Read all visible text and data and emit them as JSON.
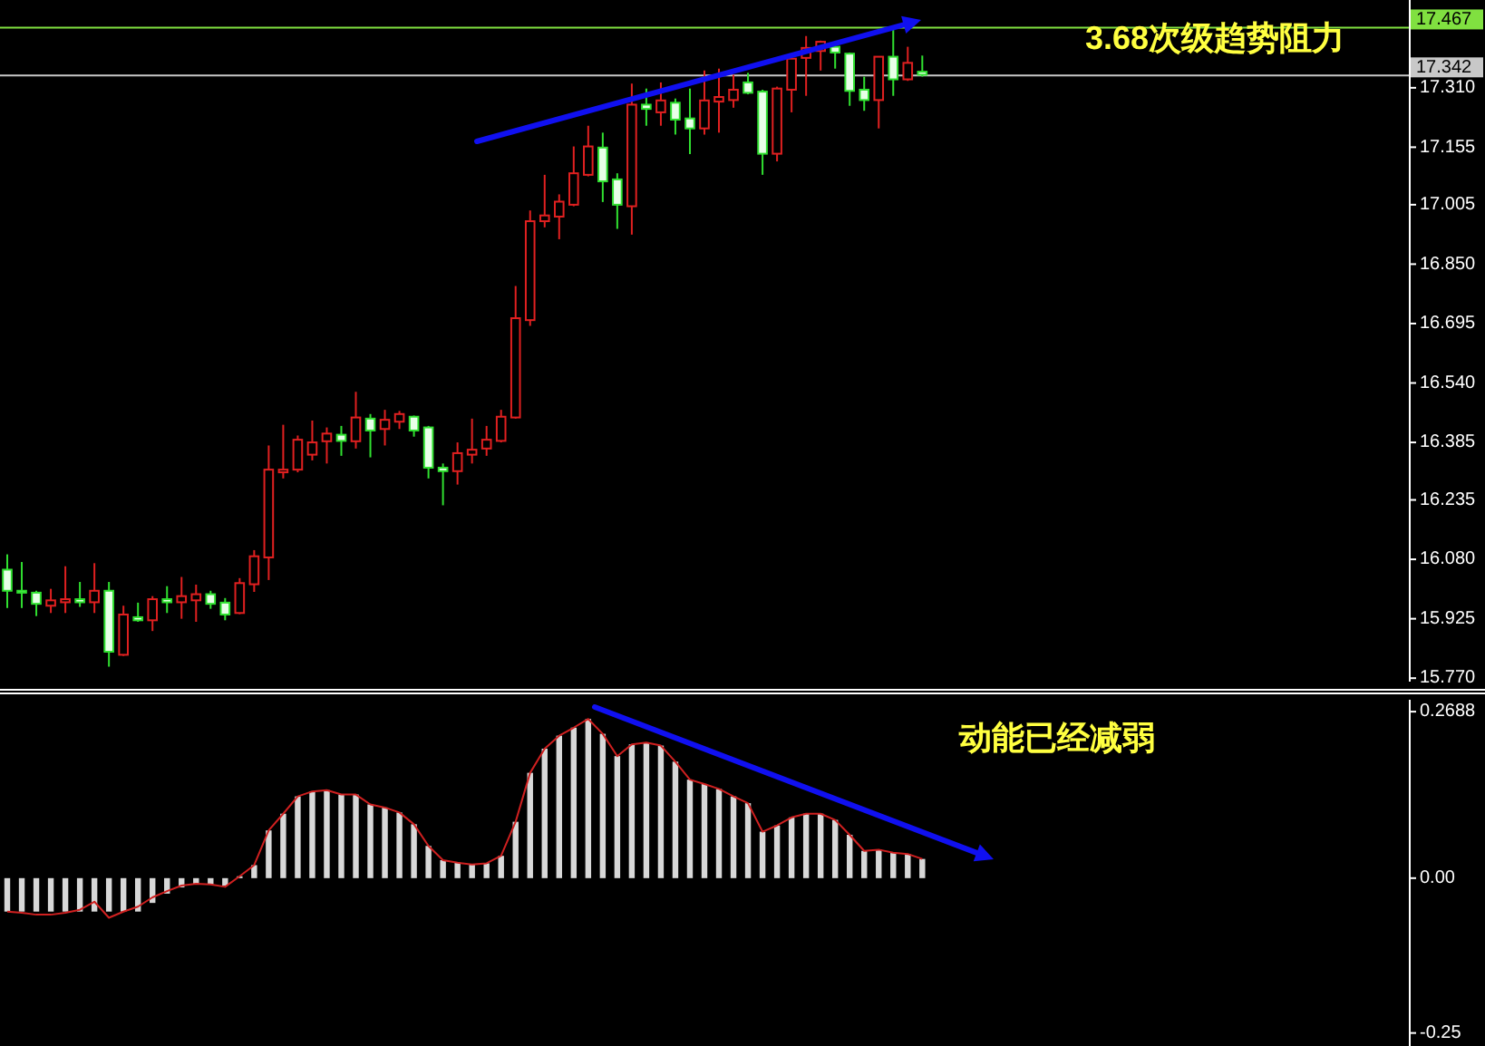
{
  "chart_data": [
    {
      "type": "candlestick",
      "tick_labels": "y",
      "ylim": [
        15.761,
        17.539
      ],
      "categories": [
        null,
        null,
        null,
        null,
        null,
        null,
        null,
        null,
        null,
        null,
        null,
        null,
        null,
        null,
        null,
        null,
        null,
        null,
        null,
        null,
        null,
        null,
        null,
        null,
        null,
        null,
        null,
        null,
        null,
        null,
        null,
        null,
        null,
        null,
        null,
        null,
        null,
        null,
        null,
        null,
        null,
        null,
        null,
        null,
        null,
        null,
        null,
        null,
        null,
        null,
        null,
        null,
        null,
        null,
        null,
        null,
        null,
        null,
        null,
        null,
        null,
        null,
        null,
        null,
        null,
        null,
        null,
        null,
        null,
        null,
        null,
        null,
        null,
        null,
        null,
        null,
        null,
        null,
        null,
        null,
        null,
        null,
        null,
        null,
        null,
        null,
        null,
        null,
        null,
        null,
        null,
        null,
        null,
        null,
        null,
        null,
        null
      ],
      "ohlc": [
        [
          16.053,
          16.093,
          15.953,
          15.998
        ],
        [
          15.998,
          16.073,
          15.953,
          15.993
        ],
        [
          15.993,
          15.998,
          15.932,
          15.964
        ],
        [
          15.959,
          16.003,
          15.94,
          15.973
        ],
        [
          15.968,
          16.062,
          15.94,
          15.976
        ],
        [
          15.976,
          16.021,
          15.956,
          15.968
        ],
        [
          15.968,
          16.07,
          15.94,
          15.998
        ],
        [
          15.998,
          16.021,
          15.8,
          15.839
        ],
        [
          15.831,
          15.959,
          15.828,
          15.936
        ],
        [
          15.929,
          15.967,
          15.917,
          15.921
        ],
        [
          15.921,
          15.984,
          15.893,
          15.976
        ],
        [
          15.976,
          16.01,
          15.94,
          15.968
        ],
        [
          15.968,
          16.034,
          15.925,
          15.984
        ],
        [
          15.973,
          16.014,
          15.917,
          15.989
        ],
        [
          15.989,
          15.998,
          15.951,
          15.964
        ],
        [
          15.967,
          15.979,
          15.921,
          15.936
        ],
        [
          15.94,
          16.031,
          15.937,
          16.018
        ],
        [
          16.015,
          16.104,
          15.995,
          16.088
        ],
        [
          16.085,
          16.377,
          16.026,
          16.314
        ],
        [
          16.307,
          16.431,
          16.291,
          16.314
        ],
        [
          16.314,
          16.403,
          16.307,
          16.392
        ],
        [
          16.353,
          16.442,
          16.338,
          16.385
        ],
        [
          16.388,
          16.424,
          16.33,
          16.408
        ],
        [
          16.405,
          16.428,
          16.35,
          16.389
        ],
        [
          16.388,
          16.517,
          16.369,
          16.45
        ],
        [
          16.447,
          16.459,
          16.346,
          16.416
        ],
        [
          16.42,
          16.47,
          16.377,
          16.444
        ],
        [
          16.439,
          16.467,
          16.42,
          16.459
        ],
        [
          16.452,
          16.455,
          16.4,
          16.416
        ],
        [
          16.424,
          16.428,
          16.291,
          16.319
        ],
        [
          16.319,
          16.33,
          16.221,
          16.31
        ],
        [
          16.31,
          16.385,
          16.275,
          16.357
        ],
        [
          16.353,
          16.447,
          16.33,
          16.366
        ],
        [
          16.369,
          16.428,
          16.35,
          16.392
        ],
        [
          16.389,
          16.47,
          16.385,
          16.452
        ],
        [
          16.45,
          16.793,
          16.447,
          16.709
        ],
        [
          16.704,
          16.99,
          16.689,
          16.962
        ],
        [
          16.962,
          17.083,
          16.946,
          16.977
        ],
        [
          16.974,
          17.032,
          16.915,
          17.013
        ],
        [
          17.005,
          17.157,
          17.001,
          17.087
        ],
        [
          17.083,
          17.211,
          17.079,
          17.157
        ],
        [
          17.154,
          17.193,
          17.012,
          17.066
        ],
        [
          17.071,
          17.087,
          16.942,
          17.005
        ],
        [
          17.001,
          17.321,
          16.927,
          17.266
        ],
        [
          17.266,
          17.308,
          17.211,
          17.255
        ],
        [
          17.246,
          17.324,
          17.211,
          17.277
        ],
        [
          17.271,
          17.282,
          17.188,
          17.227
        ],
        [
          17.23,
          17.308,
          17.137,
          17.204
        ],
        [
          17.204,
          17.355,
          17.188,
          17.277
        ],
        [
          17.274,
          17.36,
          17.193,
          17.286
        ],
        [
          17.278,
          17.344,
          17.258,
          17.305
        ],
        [
          17.324,
          17.349,
          17.293,
          17.297
        ],
        [
          17.3,
          17.305,
          17.083,
          17.138
        ],
        [
          17.138,
          17.313,
          17.118,
          17.308
        ],
        [
          17.305,
          17.386,
          17.246,
          17.386
        ],
        [
          17.388,
          17.445,
          17.289,
          17.414
        ],
        [
          17.406,
          17.433,
          17.355,
          17.43
        ],
        [
          17.417,
          17.422,
          17.36,
          17.402
        ],
        [
          17.399,
          17.402,
          17.263,
          17.302
        ],
        [
          17.305,
          17.339,
          17.25,
          17.278
        ],
        [
          17.278,
          17.391,
          17.204,
          17.391
        ],
        [
          17.391,
          17.464,
          17.289,
          17.332
        ],
        [
          17.332,
          17.417,
          17.328,
          17.375
        ],
        [
          17.352,
          17.394,
          17.339,
          17.344
        ],
        null,
        null,
        null,
        null,
        null,
        null,
        null,
        null,
        null,
        null,
        null,
        null,
        null,
        null,
        null,
        null,
        null,
        null,
        null,
        null,
        null,
        null,
        null,
        null,
        null,
        null,
        null,
        null,
        null,
        null,
        null,
        null,
        null
      ],
      "yticks": [
        {
          "value": 17.31,
          "label": "17.310"
        },
        17.155,
        17.005,
        {
          "value": 16.85,
          "label": "16.850"
        },
        16.695,
        {
          "value": 16.54,
          "label": "16.540"
        },
        16.385,
        16.235,
        {
          "value": 16.08,
          "label": "16.080"
        },
        15.925,
        {
          "value": 15.77,
          "label": "15.770"
        }
      ],
      "ref_lines": [
        {
          "axis": "y",
          "value": 17.467,
          "label": "17.467",
          "color": "#80e040"
        },
        {
          "axis": "y",
          "value": 17.342,
          "label": "17.342",
          "color": "#c8c8c8"
        }
      ],
      "annotations": [
        "3.68次级趋势阻力"
      ]
    },
    {
      "type": "bar",
      "tick_labels": "y",
      "ylim": [
        -0.271,
        0.288
      ],
      "categories": [
        null,
        null,
        null,
        null,
        null,
        null,
        null,
        null,
        null,
        null,
        null,
        null,
        null,
        null,
        null,
        null,
        null,
        null,
        null,
        null,
        null,
        null,
        null,
        null,
        null,
        null,
        null,
        null,
        null,
        null,
        null,
        null,
        null,
        null,
        null,
        null,
        null,
        null,
        null,
        null,
        null,
        null,
        null,
        null,
        null,
        null,
        null,
        null,
        null,
        null,
        null,
        null,
        null,
        null,
        null,
        null,
        null,
        null,
        null,
        null,
        null,
        null,
        null,
        null,
        null,
        null,
        null,
        null,
        null,
        null,
        null,
        null,
        null,
        null,
        null,
        null,
        null,
        null,
        null,
        null,
        null,
        null,
        null,
        null,
        null,
        null,
        null,
        null,
        null,
        null,
        null,
        null,
        null,
        null,
        null,
        null,
        null
      ],
      "yticks": [
        0.2688,
        {
          "value": 0,
          "label": "0.00"
        },
        -0.25
      ],
      "series": [
        {
          "type": "bar",
          "color": "#d8d8d8",
          "values": [
            -0.054,
            -0.054,
            -0.054,
            -0.054,
            -0.054,
            -0.054,
            -0.054,
            -0.054,
            -0.054,
            -0.054,
            -0.04,
            -0.025,
            -0.015,
            -0.01,
            -0.01,
            -0.012,
            0.003,
            0.021,
            0.077,
            0.104,
            0.132,
            0.14,
            0.142,
            0.135,
            0.135,
            0.119,
            0.114,
            0.106,
            0.087,
            0.052,
            0.029,
            0.025,
            0.022,
            0.024,
            0.036,
            0.091,
            0.17,
            0.209,
            0.23,
            0.243,
            0.257,
            0.233,
            0.197,
            0.216,
            0.219,
            0.214,
            0.188,
            0.159,
            0.152,
            0.144,
            0.132,
            0.121,
            0.075,
            0.085,
            0.098,
            0.104,
            0.104,
            0.094,
            0.07,
            0.044,
            0.046,
            0.041,
            0.039,
            0.031,
            null,
            null,
            null,
            null,
            null,
            null,
            null,
            null,
            null,
            null,
            null,
            null,
            null,
            null,
            null,
            null,
            null,
            null,
            null,
            null,
            null,
            null,
            null,
            null,
            null,
            null,
            null,
            null,
            null,
            null,
            null,
            null,
            null
          ]
        },
        {
          "type": "line",
          "color": "#d02020",
          "values": [
            -0.054,
            -0.056,
            -0.059,
            -0.059,
            -0.056,
            -0.051,
            -0.038,
            -0.064,
            -0.054,
            -0.046,
            -0.031,
            -0.021,
            -0.012,
            -0.009,
            -0.01,
            -0.014,
            0.003,
            0.021,
            0.077,
            0.104,
            0.132,
            0.14,
            0.142,
            0.135,
            0.135,
            0.119,
            0.114,
            0.106,
            0.087,
            0.052,
            0.029,
            0.025,
            0.022,
            0.024,
            0.036,
            0.091,
            0.17,
            0.209,
            0.23,
            0.243,
            0.257,
            0.233,
            0.197,
            0.216,
            0.219,
            0.214,
            0.188,
            0.159,
            0.152,
            0.144,
            0.132,
            0.121,
            0.075,
            0.085,
            0.098,
            0.104,
            0.104,
            0.094,
            0.07,
            0.044,
            0.046,
            0.041,
            0.039,
            0.031,
            null,
            null,
            null,
            null,
            null,
            null,
            null,
            null,
            null,
            null,
            null,
            null,
            null,
            null,
            null,
            null,
            null,
            null,
            null,
            null,
            null,
            null,
            null,
            null,
            null,
            null,
            null,
            null,
            null,
            null,
            null,
            null,
            null
          ]
        }
      ],
      "annotations": [
        "动能已经减弱"
      ]
    }
  ]
}
